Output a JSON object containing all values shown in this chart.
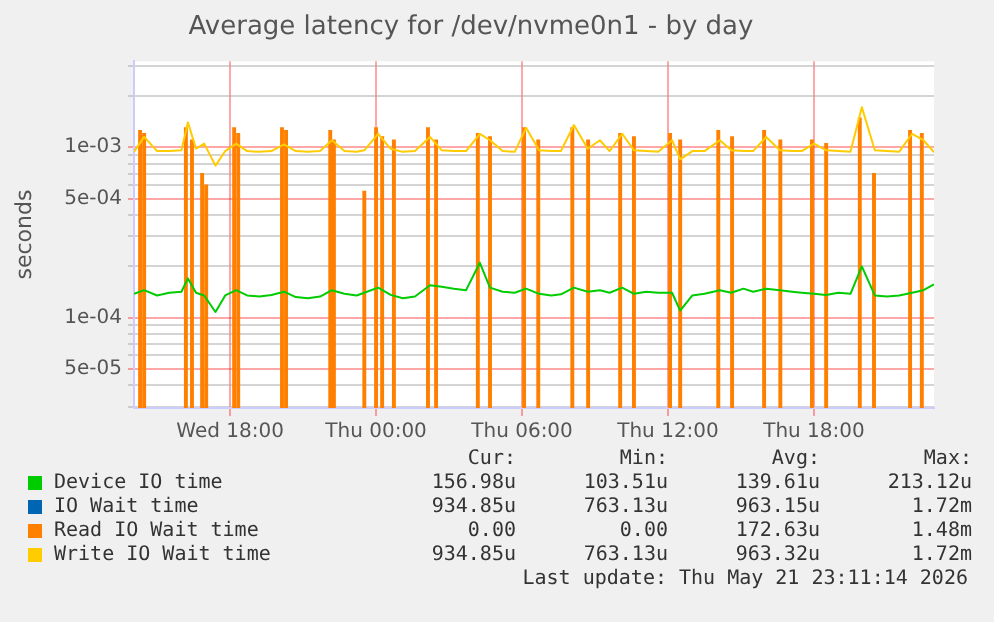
{
  "chart_data": {
    "type": "line",
    "title": "Average latency for /dev/nvme0n1 - by day",
    "ylabel": "seconds",
    "log": "y",
    "grid": true,
    "legend": "bottom",
    "marker": "none",
    "line_style": "solid",
    "xlim": [
      "2026-05-20T14:03",
      "2026-05-21T22:56"
    ],
    "xticks": [
      {
        "value": "2026-05-20T18:00",
        "label": "Wed 18:00"
      },
      {
        "value": "2026-05-21T00:00",
        "label": "Thu 00:00"
      },
      {
        "value": "2026-05-21T06:00",
        "label": "Thu 06:00"
      },
      {
        "value": "2026-05-21T12:00",
        "label": "Thu 12:00"
      },
      {
        "value": "2026-05-21T18:00",
        "label": "Thu 18:00"
      }
    ],
    "ylim": [
      2.95e-05,
      0.0032
    ],
    "yticks": [
      {
        "value": 3e-05,
        "label": null
      },
      {
        "value": 4e-05,
        "label": null
      },
      {
        "value": 5e-05,
        "label": "5e-05"
      },
      {
        "value": 6e-05,
        "label": null
      },
      {
        "value": 7e-05,
        "label": null
      },
      {
        "value": 8e-05,
        "label": null
      },
      {
        "value": 9e-05,
        "label": null
      },
      {
        "value": 0.0001,
        "label": "1e-04"
      },
      {
        "value": 0.0002,
        "label": null
      },
      {
        "value": 0.0003,
        "label": null
      },
      {
        "value": 0.0004,
        "label": null
      },
      {
        "value": 0.0005,
        "label": "5e-04"
      },
      {
        "value": 0.0006,
        "label": null
      },
      {
        "value": 0.0007,
        "label": null
      },
      {
        "value": 0.0008,
        "label": null
      },
      {
        "value": 0.0009,
        "label": null
      },
      {
        "value": 0.001,
        "label": "1e-03"
      },
      {
        "value": 0.002,
        "label": null
      },
      {
        "value": 0.003,
        "label": null
      }
    ],
    "x": [
      "2026-05-20T14:03",
      "2026-05-20T14:28",
      "2026-05-20T15:00",
      "2026-05-20T15:30",
      "2026-05-20T16:00",
      "2026-05-20T16:16",
      "2026-05-20T16:36",
      "2026-05-20T16:56",
      "2026-05-20T17:24",
      "2026-05-20T17:48",
      "2026-05-20T18:15",
      "2026-05-20T18:42",
      "2026-05-20T19:12",
      "2026-05-20T19:42",
      "2026-05-20T20:13",
      "2026-05-20T20:42",
      "2026-05-20T21:12",
      "2026-05-20T21:42",
      "2026-05-20T22:11",
      "2026-05-20T22:42",
      "2026-05-20T23:12",
      "2026-05-20T23:31",
      "2026-05-21T00:05",
      "2026-05-21T00:36",
      "2026-05-21T01:06",
      "2026-05-21T01:36",
      "2026-05-21T02:13",
      "2026-05-21T02:42",
      "2026-05-21T03:12",
      "2026-05-21T03:42",
      "2026-05-21T04:16",
      "2026-05-21T04:41",
      "2026-05-21T05:12",
      "2026-05-21T05:42",
      "2026-05-21T06:10",
      "2026-05-21T06:42",
      "2026-05-21T07:12",
      "2026-05-21T07:36",
      "2026-05-21T08:08",
      "2026-05-21T08:42",
      "2026-05-21T09:12",
      "2026-05-21T09:36",
      "2026-05-21T10:07",
      "2026-05-21T10:36",
      "2026-05-21T11:06",
      "2026-05-21T11:36",
      "2026-05-21T12:10",
      "2026-05-21T12:30",
      "2026-05-21T13:00",
      "2026-05-21T13:30",
      "2026-05-21T14:08",
      "2026-05-21T14:36",
      "2026-05-21T15:06",
      "2026-05-21T15:30",
      "2026-05-21T16:02",
      "2026-05-21T16:36",
      "2026-05-21T17:06",
      "2026-05-21T17:30",
      "2026-05-21T18:00",
      "2026-05-21T18:30",
      "2026-05-21T19:00",
      "2026-05-21T19:30",
      "2026-05-21T19:58",
      "2026-05-21T20:30",
      "2026-05-21T21:00",
      "2026-05-21T21:30",
      "2026-05-21T22:02",
      "2026-05-21T22:30",
      "2026-05-21T22:56"
    ],
    "series": [
      {
        "name": "Device IO time",
        "color": "#00cc00",
        "values": [
          0.000138,
          0.000145,
          0.000135,
          0.00014,
          0.000142,
          0.00017,
          0.00014,
          0.000135,
          0.000108,
          0.000135,
          0.000145,
          0.000135,
          0.000133,
          0.000136,
          0.000142,
          0.000132,
          0.00013,
          0.000133,
          0.000145,
          0.000138,
          0.000135,
          0.00014,
          0.00015,
          0.000136,
          0.00013,
          0.000133,
          0.000155,
          0.000152,
          0.000148,
          0.000145,
          0.00021,
          0.00015,
          0.000142,
          0.00014,
          0.000148,
          0.000138,
          0.000135,
          0.000137,
          0.00015,
          0.000142,
          0.000145,
          0.00014,
          0.00015,
          0.000138,
          0.000142,
          0.00014,
          0.00014,
          0.00011,
          0.000135,
          0.000138,
          0.000145,
          0.00014,
          0.000148,
          0.000142,
          0.000148,
          0.000145,
          0.000142,
          0.00014,
          0.000138,
          0.000136,
          0.00014,
          0.000138,
          0.0002,
          0.000135,
          0.000133,
          0.000135,
          0.00014,
          0.000145,
          0.000157
        ]
      },
      {
        "name": "IO Wait time",
        "color": "#0066b3",
        "values": [
          null,
          null,
          null,
          null,
          null,
          null,
          null,
          null,
          null,
          null,
          null,
          null,
          null,
          null,
          null,
          null,
          null,
          null,
          null,
          null,
          null,
          null,
          null,
          null,
          null,
          null,
          null,
          null,
          null,
          null,
          null,
          null,
          null,
          null,
          null,
          null,
          null,
          null,
          null,
          null,
          null,
          null,
          null,
          null,
          null,
          null,
          null,
          null,
          null,
          null,
          null,
          null,
          null,
          null,
          null,
          null,
          null,
          null,
          null,
          null,
          null,
          null,
          null,
          null,
          null,
          null,
          null,
          null,
          null
        ]
      },
      {
        "name": "Read IO Wait time",
        "color": "#ff8000",
        "type": "bar",
        "x": [
          "2026-05-20T14:18",
          "2026-05-20T14:28",
          "2026-05-20T16:11",
          "2026-05-20T16:26",
          "2026-05-20T16:51",
          "2026-05-20T17:01",
          "2026-05-20T18:10",
          "2026-05-20T18:20",
          "2026-05-20T20:08",
          "2026-05-20T20:18",
          "2026-05-20T22:07",
          "2026-05-20T22:16",
          "2026-05-20T23:31",
          "2026-05-21T00:00",
          "2026-05-21T00:15",
          "2026-05-21T00:44",
          "2026-05-21T02:08",
          "2026-05-21T02:28",
          "2026-05-21T04:11",
          "2026-05-21T04:41",
          "2026-05-21T06:05",
          "2026-05-21T06:40",
          "2026-05-21T08:04",
          "2026-05-21T08:43",
          "2026-05-21T10:02",
          "2026-05-21T10:36",
          "2026-05-21T12:05",
          "2026-05-21T12:30",
          "2026-05-21T14:04",
          "2026-05-21T14:38",
          "2026-05-21T15:57",
          "2026-05-21T16:37",
          "2026-05-21T17:55",
          "2026-05-21T18:30",
          "2026-05-21T19:53",
          "2026-05-21T20:28",
          "2026-05-21T21:57",
          "2026-05-21T22:26"
        ],
        "values": [
          0.00125,
          0.0012,
          0.0013,
          0.0011,
          0.0007,
          0.0006,
          0.0013,
          0.0012,
          0.0013,
          0.00125,
          0.00125,
          0.0011,
          0.00055,
          0.0013,
          0.00115,
          0.0011,
          0.0013,
          0.0011,
          0.0012,
          0.00115,
          0.0013,
          0.0011,
          0.0013,
          0.0011,
          0.0012,
          0.00115,
          0.0012,
          0.0011,
          0.00125,
          0.00115,
          0.00125,
          0.0011,
          0.0011,
          0.00105,
          0.00148,
          0.0007,
          0.00125,
          0.0012
        ]
      },
      {
        "name": "Write IO Wait time",
        "color": "#ffcc00",
        "values": [
          0.00094,
          0.00115,
          0.00095,
          0.00095,
          0.00096,
          0.0014,
          0.00098,
          0.00105,
          0.00078,
          0.00095,
          0.00105,
          0.00095,
          0.00094,
          0.00095,
          0.00104,
          0.00095,
          0.00094,
          0.00095,
          0.0011,
          0.00095,
          0.00094,
          0.00096,
          0.0012,
          0.00098,
          0.00094,
          0.00095,
          0.00115,
          0.00096,
          0.00095,
          0.00095,
          0.0012,
          0.0011,
          0.00095,
          0.00094,
          0.0013,
          0.00096,
          0.00095,
          0.00095,
          0.00135,
          0.00098,
          0.0011,
          0.00095,
          0.0012,
          0.00096,
          0.00095,
          0.00094,
          0.0011,
          0.00085,
          0.00095,
          0.00095,
          0.0011,
          0.00096,
          0.00095,
          0.00095,
          0.00115,
          0.00096,
          0.00095,
          0.00095,
          0.00105,
          0.00096,
          0.00095,
          0.00094,
          0.00172,
          0.00096,
          0.00095,
          0.00094,
          0.0012,
          0.0011,
          0.000935
        ]
      }
    ],
    "annotations": [
      "Cur:",
      "Min:",
      "Avg:",
      "Max:",
      "156.98u",
      "103.51u",
      "139.61u",
      "213.12u",
      "934.85u",
      "763.13u",
      "963.15u",
      "1.72m",
      "0.00",
      "0.00",
      "172.63u",
      "1.48m",
      "934.85u",
      "763.13u",
      "963.32u",
      "1.72m",
      "Last update: Thu May 21 23:11:14 2026"
    ]
  }
}
